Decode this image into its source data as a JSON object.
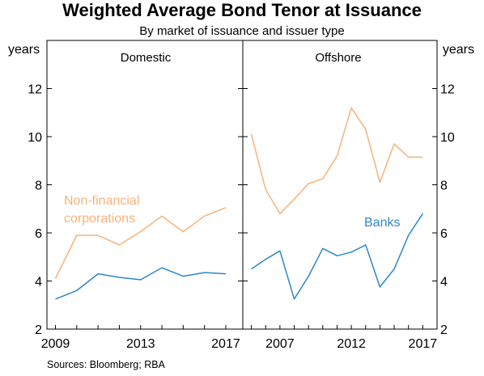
{
  "chart_data": {
    "type": "line",
    "title": "Weighted Average Bond Tenor at Issuance",
    "subtitle": "By market of issuance and issuer type",
    "y_unit_left": "years",
    "y_unit_right": "years",
    "ylim": [
      2,
      14
    ],
    "y_ticks": [
      "2",
      "4",
      "6",
      "8",
      "10",
      "12"
    ],
    "source": "Sources:   Bloomberg; RBA",
    "colors": {
      "non_financial": "#f7b27a",
      "banks": "#2d87c8",
      "axis": "#000000"
    },
    "panels": [
      {
        "name": "Domestic",
        "xlim": [
          2008.6,
          2017.8
        ],
        "x_ticks": [
          "2009",
          "2013",
          "2017"
        ],
        "series": [
          {
            "name": "Non-financial corporations",
            "label_lines": [
              "Non-financial",
              "corporations"
            ],
            "color_key": "non_financial",
            "x": [
              2009,
              2010,
              2011,
              2012,
              2013,
              2014,
              2015,
              2016,
              2017
            ],
            "y": [
              4.1,
              5.9,
              5.9,
              5.5,
              6.05,
              6.7,
              6.05,
              6.7,
              7.05
            ]
          },
          {
            "name": "Banks",
            "color_key": "banks",
            "x": [
              2009,
              2010,
              2011,
              2012,
              2013,
              2014,
              2015,
              2016,
              2017
            ],
            "y": [
              3.25,
              3.6,
              4.3,
              4.15,
              4.05,
              4.55,
              4.2,
              4.35,
              4.3
            ]
          }
        ]
      },
      {
        "name": "Offshore",
        "xlim": [
          2004.4,
          2018.0
        ],
        "x_ticks": [
          "2007",
          "2012",
          "2017"
        ],
        "series": [
          {
            "name": "Non-financial corporations",
            "color_key": "non_financial",
            "x": [
              2005,
              2006,
              2007,
              2008,
              2009,
              2010,
              2011,
              2012,
              2013,
              2014,
              2015,
              2016,
              2017
            ],
            "y": [
              10.1,
              7.8,
              6.8,
              7.4,
              8.05,
              8.25,
              9.2,
              11.2,
              10.3,
              8.1,
              9.7,
              9.15,
              9.15
            ]
          },
          {
            "name": "Banks",
            "label_lines": [
              "Banks"
            ],
            "color_key": "banks",
            "x": [
              2005,
              2006,
              2007,
              2008,
              2009,
              2010,
              2011,
              2012,
              2013,
              2014,
              2015,
              2016,
              2017
            ],
            "y": [
              4.5,
              4.9,
              5.25,
              3.25,
              4.2,
              5.35,
              5.05,
              5.2,
              5.5,
              3.75,
              4.5,
              5.9,
              6.8
            ]
          }
        ]
      }
    ]
  }
}
